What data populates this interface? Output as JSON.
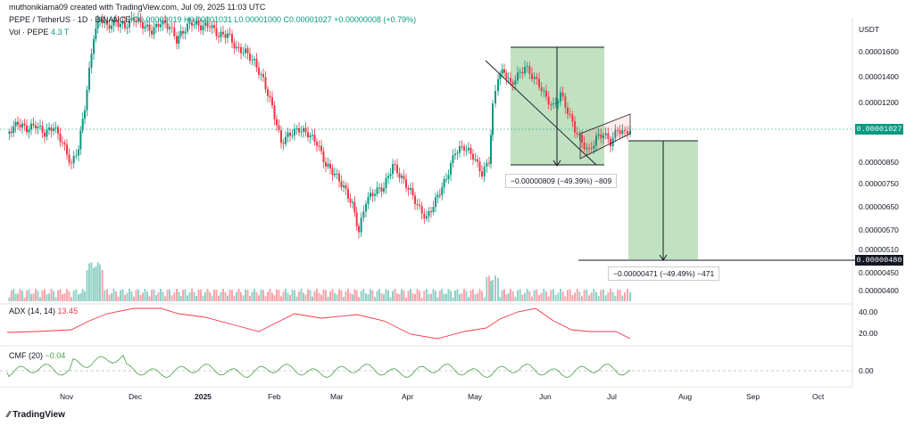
{
  "header": {
    "creator_line": "muthonikiama09 created with TradingView.com, Jul 09, 2025 11:03 UTC",
    "symbol_line": "PEPE / TetherUS · 1D · BINANCE",
    "ohlc": "O0.00001019 H0.00001031 L0.00001000 C0.00001027 +0.00000008 (+0.79%)",
    "volume_label": "Vol · PEPE",
    "volume_value": "4.3 T"
  },
  "price_axis": {
    "currency": "USDT",
    "ticks": [
      "0.00001600",
      "0.00001400",
      "0.00001200",
      "0.00000850",
      "0.00000750",
      "0.00000650",
      "0.00000570",
      "0.00000510",
      "0.00000450",
      "0.00000400"
    ],
    "current_price_badge": "0.00001027",
    "target_price_badge": "0.00000480"
  },
  "indicators": {
    "adx_label": "ADX (14, 14)",
    "adx_value": "13.45",
    "adx_ticks": [
      "40.00",
      "20.00"
    ],
    "cmf_label": "CMF (20)",
    "cmf_value": "−0.04",
    "cmf_ticks": [
      "0.00"
    ]
  },
  "time_axis": {
    "months": [
      "Nov",
      "Dec",
      "2025",
      "Feb",
      "Mar",
      "Apr",
      "May",
      "Jun",
      "Jul",
      "Aug",
      "Sep",
      "Oct"
    ]
  },
  "measurements": {
    "first": "−0.00000809 (−49.39%) −809",
    "second": "−0.00000471 (−49.49%) −471"
  },
  "footer": {
    "brand": "TradingView"
  },
  "colors": {
    "up": "#089981",
    "down": "#f23645",
    "measure_fill": "#a5d6a7",
    "adx_line": "#f23645",
    "cmf_line": "#43a047"
  },
  "chart_data": {
    "type": "candlestick",
    "title": "PEPE / TetherUS · 1D · BINANCE",
    "x": [
      "Nov",
      "Dec",
      "2025",
      "Feb",
      "Mar",
      "Apr",
      "May",
      "Jun",
      "Jul"
    ],
    "close_approx": [
      9.3e-06,
      1.95e-05,
      1.95e-05,
      1.2e-05,
      6.8e-06,
      8.2e-06,
      9.5e-06,
      1.1e-05,
      1.027e-05
    ],
    "ylabel": "USDT",
    "projected_target": 4.8e-06
  }
}
